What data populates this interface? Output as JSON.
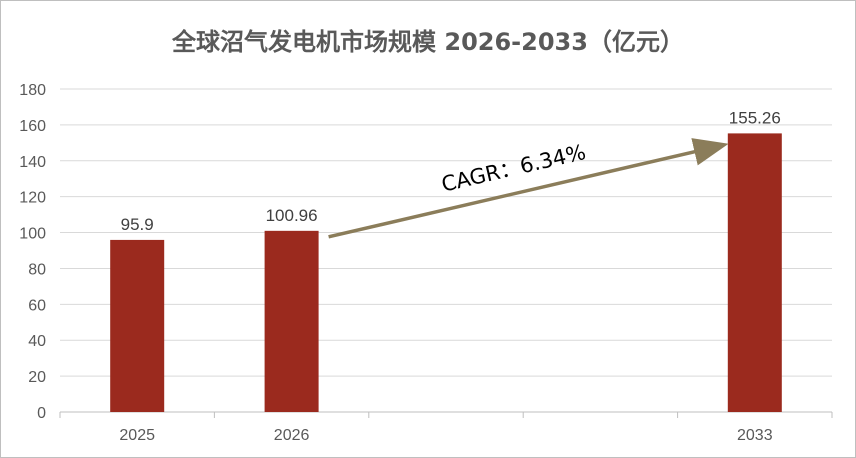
{
  "chart_data": {
    "type": "bar",
    "title": "全球沼气发电机市场规模 2026-2033（亿元）",
    "categories": [
      "2025",
      "2026",
      "",
      "",
      "2033"
    ],
    "values": [
      95.9,
      100.96,
      null,
      null,
      155.26
    ],
    "data_labels": [
      "95.9",
      "100.96",
      "",
      "",
      "155.26"
    ],
    "ylim": [
      0,
      180
    ],
    "yticks": [
      0,
      20,
      40,
      60,
      80,
      100,
      120,
      140,
      160,
      180
    ],
    "grid": true,
    "bar_color": "#9B2A1E",
    "annotation": {
      "text": "CAGR：6.34%",
      "from_category": 1,
      "to_category": 4,
      "color": "#8B7D5A"
    }
  }
}
